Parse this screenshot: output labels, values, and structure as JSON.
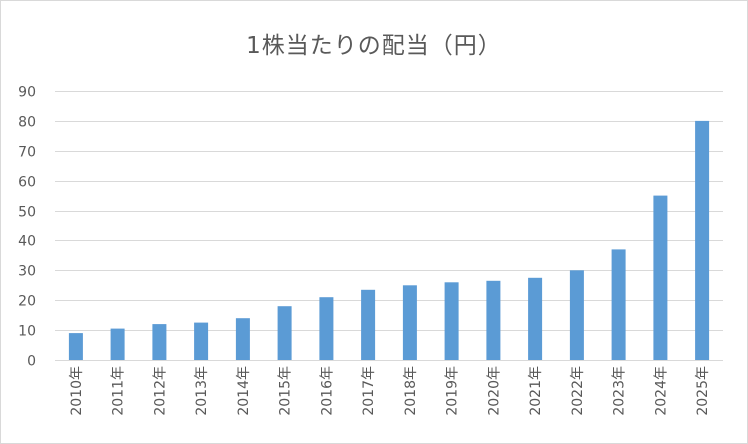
{
  "chart_data": {
    "type": "bar",
    "title": "1株当たりの配当（円）",
    "xlabel": "",
    "ylabel": "",
    "categories": [
      "2010年",
      "2011年",
      "2012年",
      "2013年",
      "2014年",
      "2015年",
      "2016年",
      "2017年",
      "2018年",
      "2019年",
      "2020年",
      "2021年",
      "2022年",
      "2023年",
      "2024年",
      "2025年"
    ],
    "values": [
      9,
      10.5,
      12,
      12.5,
      14,
      18,
      21,
      23.5,
      25,
      26,
      26.5,
      27.5,
      30,
      37,
      55,
      80
    ],
    "ylim": [
      0,
      90
    ],
    "yticks": [
      0,
      10,
      20,
      30,
      40,
      50,
      60,
      70,
      80,
      90
    ],
    "grid": true,
    "legend": "none",
    "bar_color": "#5b9bd5",
    "grid_color": "#d9d9d9",
    "axis_color": "#d9d9d9",
    "text_color": "#595959"
  }
}
